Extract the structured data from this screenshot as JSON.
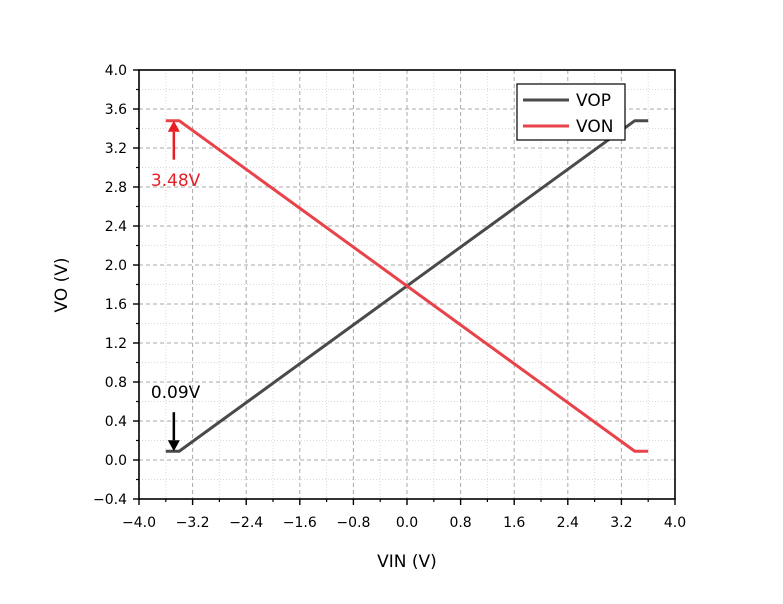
{
  "chart_data": {
    "type": "line",
    "title": "",
    "xlabel": "VIN (V)",
    "ylabel": "VO (V)",
    "xlim": [
      -4.0,
      4.0
    ],
    "ylim": [
      -0.4,
      4.0
    ],
    "xticks": [
      -4.0,
      -3.2,
      -2.4,
      -1.6,
      -0.8,
      0.0,
      0.8,
      1.6,
      2.4,
      3.2,
      4.0
    ],
    "xtick_labels": [
      "−4.0",
      "−3.2",
      "−2.4",
      "−1.6",
      "−0.8",
      "0.0",
      "0.8",
      "1.6",
      "2.4",
      "3.2",
      "4.0"
    ],
    "yticks": [
      -0.4,
      0.0,
      0.4,
      0.8,
      1.2,
      1.6,
      2.0,
      2.4,
      2.8,
      3.2,
      3.6,
      4.0
    ],
    "ytick_labels": [
      "−0.4",
      "0.0",
      "0.4",
      "0.8",
      "1.2",
      "1.6",
      "2.0",
      "2.4",
      "2.8",
      "3.2",
      "3.6",
      "4.0"
    ],
    "grid": true,
    "legend_position": "top-right",
    "series": [
      {
        "name": "VOP",
        "color": "#4a4a4a",
        "x": [
          -3.6,
          -3.4,
          3.4,
          3.6
        ],
        "y": [
          0.09,
          0.09,
          3.48,
          3.48
        ]
      },
      {
        "name": "VON",
        "color": "#e8434a",
        "x": [
          -3.6,
          -3.4,
          3.4,
          3.6
        ],
        "y": [
          3.48,
          3.48,
          0.09,
          0.09
        ]
      }
    ],
    "annotations": [
      {
        "id": "von-max",
        "text": "3.48V",
        "color": "#e81e25",
        "point": [
          -3.48,
          3.48
        ],
        "arrow_from": [
          -3.48,
          3.08
        ],
        "label_anchor": [
          -3.48,
          2.87
        ]
      },
      {
        "id": "vop-min",
        "text": "0.09V",
        "color": "#000000",
        "point": [
          -3.48,
          0.09
        ],
        "arrow_from": [
          -3.48,
          0.49
        ],
        "label_anchor": [
          -3.48,
          0.7
        ]
      }
    ]
  }
}
